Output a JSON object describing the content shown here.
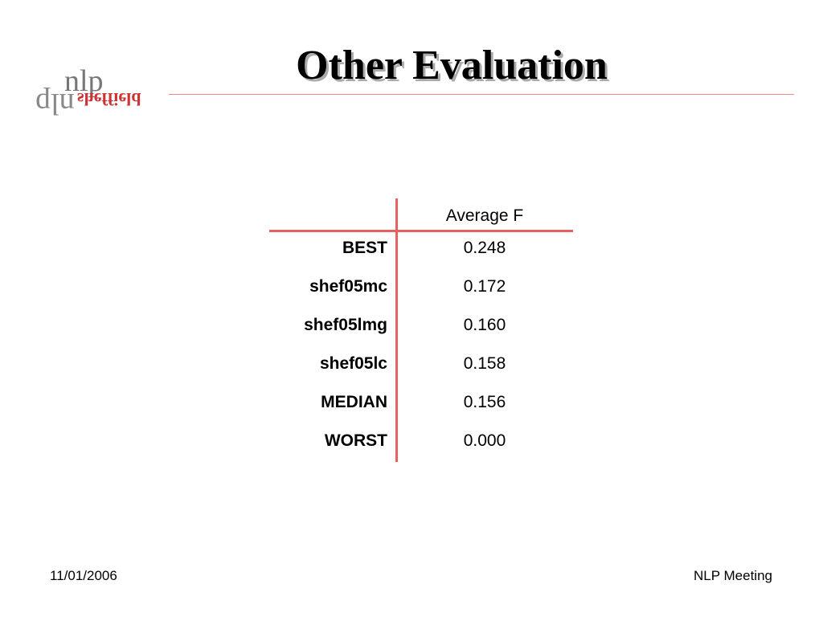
{
  "logo": {
    "word": "nlp",
    "place": "sheffield"
  },
  "title": "Other Evaluation",
  "table": {
    "column_header": "Average F",
    "rows": [
      [
        "BEST",
        "0.248"
      ],
      [
        "shef05mc",
        "0.172"
      ],
      [
        "shef05lmg",
        "0.160"
      ],
      [
        "shef05lc",
        "0.158"
      ],
      [
        "MEDIAN",
        "0.156"
      ],
      [
        "WORST",
        "0.000"
      ]
    ]
  },
  "footer": {
    "date": "11/01/2006",
    "event": "NLP Meeting"
  }
}
